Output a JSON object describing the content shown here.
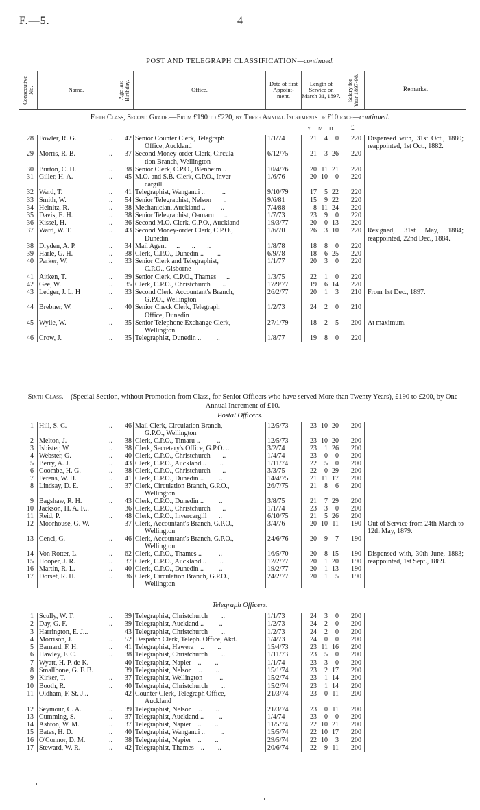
{
  "page": {
    "ref": "F.—5.",
    "number": "4"
  },
  "title": {
    "main": "POST AND TELEGRAPH CLASSIFICATION",
    "cont": "—continued."
  },
  "columns": {
    "no": "Consecutive No.",
    "name": "Name.",
    "age": "Age last Birthday.",
    "office": "Office.",
    "date": "Date of first Appoint- ment.",
    "service": "Length of Service on March 31, 1897.",
    "salary": "Salary for Year 1897-98.",
    "remarks": "Remarks."
  },
  "fifth": {
    "heading": "Fifth Class, Second Grade.—From £190 to £220, by Three Annual Increments of £10 each",
    "cont": "—continued.",
    "units": {
      "y": "Y.",
      "m": "M.",
      "d": "D.",
      "pound": "£"
    },
    "rows": [
      [
        "28",
        "Fowler, R. G.",
        "42",
        [
          "Senior Counter Clerk, Telegraph",
          "Office, Auckland"
        ],
        "1/1/74",
        "21",
        "4",
        "0",
        "220",
        "Dispensed with, 31st Oct., 1880; reappointed, 1st Oct., 1882."
      ],
      [
        "29",
        "Morris, R. B.",
        "37",
        [
          "Second Money-order Clerk, Circula-",
          "tion Branch, Wellington"
        ],
        "6/12/75",
        "21",
        "3",
        "26",
        "220",
        ""
      ],
      [
        "30",
        "Burton, C. H.",
        "38",
        [
          "Senior Clerk, C.P.O., Blenheim .."
        ],
        "10/4/76",
        "20",
        "11",
        "21",
        "220",
        ""
      ],
      [
        "31",
        "Giller, H. A.",
        "45",
        [
          "M.O. and S.B. Clerk, C.P.O., Inver-",
          "cargill"
        ],
        "1/6/76",
        "20",
        "10",
        "0",
        "220",
        ""
      ],
      [
        "32",
        "Ward, T.",
        "41",
        [
          "Telegraphist, Wanganui ..          .."
        ],
        "9/10/79",
        "17",
        "5",
        "22",
        "220",
        ""
      ],
      [
        "33",
        "Smith, W.",
        "54",
        [
          "Senior Telegraphist, Nelson       .."
        ],
        "9/6/81",
        "15",
        "9",
        "22",
        "220",
        ""
      ],
      [
        "34",
        "Heinitz, R.",
        "38",
        [
          "Mechanician, Auckland ..         .."
        ],
        "7/4/88",
        "8",
        "11",
        "24",
        "220",
        ""
      ],
      [
        "35",
        "Davis, E. H.",
        "38",
        [
          "Senior Telegraphist, Oamaru      .."
        ],
        "1/7/73",
        "23",
        "9",
        "0",
        "220",
        ""
      ],
      [
        "36",
        "Kissel, H.",
        "36",
        [
          "Second M.O. Clerk, C.P.O., Auckland"
        ],
        "19/3/77",
        "20",
        "0",
        "13",
        "220",
        ""
      ],
      [
        "37",
        "Ward, W. T.",
        "43",
        [
          "Second Money-order Clerk, C.P.O.,",
          "Dunedin"
        ],
        "1/6/70",
        "26",
        "3",
        "10",
        "220",
        "Resigned, 31st May, 1884; reappointed, 22nd Dec., 1884."
      ],
      [
        "38",
        "Dryden, A. P.",
        "34",
        [
          "Mail Agent      ..       ..       .."
        ],
        "1/8/78",
        "18",
        "8",
        "0",
        "220",
        ""
      ],
      [
        "39",
        "Harle, G. H.",
        "38",
        [
          "Clerk, C.P.O., Dunedin ..        .."
        ],
        "6/9/78",
        "18",
        "6",
        "25",
        "220",
        ""
      ],
      [
        "40",
        "Parker, W.",
        "33",
        [
          "Senior Clerk and Telegraphist,",
          "C.P.O., Gisborne"
        ],
        "1/1/77",
        "20",
        "3",
        "0",
        "220",
        ""
      ],
      [
        "41",
        "Aitken, T.",
        "39",
        [
          "Senior Clerk, C.P.O., Thames      .."
        ],
        "1/3/75",
        "22",
        "1",
        "0",
        "220",
        ""
      ],
      [
        "42",
        "Gee, W.",
        "35",
        [
          "Clerk, C.P.O., Christchurch       .."
        ],
        "17/9/77",
        "19",
        "6",
        "14",
        "220",
        ""
      ],
      [
        "43",
        "Ledger, J. L. H",
        "33",
        [
          "Second Clerk, Accountant's Branch,",
          "G.P.O., Wellington"
        ],
        "26/2/77",
        "20",
        "1",
        "3",
        "210",
        "From 1st Dec., 1897."
      ],
      [
        "44",
        "Brebner, W.",
        "40",
        [
          "Senior Check Clerk, Telegraph",
          "Office, Dunedin"
        ],
        "1/2/73",
        "24",
        "2",
        "0",
        "210",
        ""
      ],
      [
        "45",
        "Wylie, W.",
        "35",
        [
          "Senior Telephone Exchange Clerk,",
          "Wellington"
        ],
        "27/1/79",
        "18",
        "2",
        "5",
        "200",
        "At maximum."
      ],
      [
        "46",
        "Crow, J.",
        "35",
        [
          "Telegraphist, Dunedin ..         .."
        ],
        "1/8/77",
        "19",
        "8",
        "0",
        "220",
        ""
      ]
    ]
  },
  "sixth": {
    "heading_a": "Sixth Class.",
    "heading_b": "—(Special Section, without Promotion from Class, for Senior Officers who have served More than Twenty Years), £190 to £200, by One Annual Increment of £10.",
    "postal_title": "Postal Officers.",
    "postal_rows": [
      [
        "1",
        "Hill, S. C.",
        "46",
        [
          "Mail Clerk, Circulation Branch,",
          "G.P.O., Wellington"
        ],
        "12/5/73",
        "23",
        "10",
        "20",
        "200",
        ""
      ],
      [
        "2",
        "Melton, J.",
        "38",
        [
          "Clerk, C.P.O., Timaru ..          .."
        ],
        "12/5/73",
        "23",
        "10",
        "20",
        "200",
        ""
      ],
      [
        "3",
        "Isbister, W.",
        "38",
        [
          "Clerk, Secretary's Office, G.P.O. .."
        ],
        "3/2/74",
        "23",
        "1",
        "26",
        "200",
        ""
      ],
      [
        "4",
        "Webster, G.",
        "40",
        [
          "Clerk, C.P.O., Christchurch       .."
        ],
        "1/4/74",
        "23",
        "0",
        "0",
        "200",
        ""
      ],
      [
        "5",
        "Berry, A. J.",
        "43",
        [
          "Clerk, C.P.O., Auckland ..        .."
        ],
        "1/11/74",
        "22",
        "5",
        "0",
        "200",
        ""
      ],
      [
        "6",
        "Coombe, H. G.",
        "38",
        [
          "Clerk, C.P.O., Christchurch       .."
        ],
        "3/3/75",
        "22",
        "0",
        "29",
        "200",
        ""
      ],
      [
        "7",
        "Ferens, W. H.",
        "41",
        [
          "Clerk, C.P.O., Dunedin ..         .."
        ],
        "14/4/75",
        "21",
        "11",
        "17",
        "200",
        ""
      ],
      [
        "8",
        "Lindsay, D. E.",
        "37",
        [
          "Clerk, Circulation Branch, G.P.O.,",
          "Wellington"
        ],
        "26/7/75",
        "21",
        "8",
        "6",
        "200",
        ""
      ],
      [
        "9",
        "Bagshaw, R. H.",
        "43",
        [
          "Clerk, C.P.O., Dunedin ..         .."
        ],
        "3/8/75",
        "21",
        "7",
        "29",
        "200",
        ""
      ],
      [
        "10",
        "Jackson, H. A. F...",
        "36",
        [
          "Clerk, C.P.O., Christchurch       .."
        ],
        "1/1/74",
        "23",
        "3",
        "0",
        "200",
        ""
      ],
      [
        "11",
        "Reid, P.",
        "48",
        [
          "Clerk, C.P.O., Invercargill       .."
        ],
        "6/10/75",
        "21",
        "5",
        "26",
        "200",
        ""
      ],
      [
        "12",
        "Moorhouse, G. W.",
        "37",
        [
          "Clerk, Accountant's Branch, G.P.O.,",
          "Wellington"
        ],
        "3/4/76",
        "20",
        "10",
        "11",
        "190",
        "Out of Service from 24th March to 12th May, 1879."
      ],
      [
        "13",
        "Cenci, G.",
        "46",
        [
          "Clerk, Accountant's Branch, G.P.O.,",
          "Wellington"
        ],
        "24/6/76",
        "20",
        "9",
        "7",
        "190",
        ""
      ],
      [
        "14",
        "Von Rotter, L.",
        "62",
        [
          "Clerk, C.P.O., Thames ..          .."
        ],
        "16/5/70",
        "20",
        "8",
        "15",
        "190",
        "Dispensed with, 30th June, 1883; reappointed, 1st Sept., 1889."
      ],
      [
        "15",
        "Hooper, J. R.",
        "37",
        [
          "Clerk, C.P.O., Auckland ..        .."
        ],
        "12/2/77",
        "20",
        "1",
        "20",
        "190",
        ""
      ],
      [
        "16",
        "Martin, R. L.",
        "40",
        [
          "Clerk, C.P.O., Dunedin ..         .."
        ],
        "19/2/77",
        "20",
        "1",
        "13",
        "190",
        ""
      ],
      [
        "17",
        "Dorset, R. H.",
        "36",
        [
          "Clerk, Circulation Branch, G.P.O.,",
          "Wellington"
        ],
        "24/2/77",
        "20",
        "1",
        "5",
        "190",
        ""
      ]
    ],
    "telegraph_title": "Telegraph Officers.",
    "telegraph_rows": [
      [
        "1",
        "Scully, W. T.",
        "39",
        [
          "Telegraphist, Christchurch        .."
        ],
        "1/1/73",
        "24",
        "3",
        "0",
        "200",
        ""
      ],
      [
        "2",
        "Day, G. F.",
        "39",
        [
          "Telegraphist, Auckland ..         .."
        ],
        "1/2/73",
        "24",
        "2",
        "0",
        "200",
        ""
      ],
      [
        "3",
        "Harrington, E. J...",
        "43",
        [
          "Telegraphist, Christchurch        .."
        ],
        "1/2/73",
        "24",
        "2",
        "0",
        "200",
        ""
      ],
      [
        "4",
        "Morrison, J.",
        "52",
        [
          "Despatch Clerk, Teleph. Office, Akd."
        ],
        "1/4/73",
        "24",
        "0",
        "0",
        "200",
        ""
      ],
      [
        "5",
        "Barnard, F. H.",
        "41",
        [
          "Telegraphist, Hawera    ..        .."
        ],
        "15/4/73",
        "23",
        "11",
        "16",
        "200",
        ""
      ],
      [
        "6",
        "Hawley, F. C.",
        "38",
        [
          "Telegraphist, Christchurch        .."
        ],
        "1/11/73",
        "23",
        "5",
        "0",
        "200",
        ""
      ],
      [
        "7",
        "Wyatt, H. P. de K.",
        "40",
        [
          "Telegraphist, Napier    ..        .."
        ],
        "1/1/74",
        "23",
        "3",
        "0",
        "200",
        ""
      ],
      [
        "8",
        "Smallbone, G. F. B.",
        "39",
        [
          "Telegraphist, Nelson    ..        .."
        ],
        "15/1/74",
        "23",
        "2",
        "17",
        "200",
        ""
      ],
      [
        "9",
        "Kirker, T.",
        "37",
        [
          "Telegraphist, Wellington          .."
        ],
        "15/2/74",
        "23",
        "1",
        "14",
        "200",
        ""
      ],
      [
        "10",
        "Booth, R.",
        "40",
        [
          "Telegraphist, Christchurch        .."
        ],
        "15/2/74",
        "23",
        "1",
        "14",
        "200",
        ""
      ],
      [
        "11",
        "Oldham, F. St. J...",
        "42",
        [
          "Counter Clerk, Telegraph Office,",
          "Auckland"
        ],
        "21/3/74",
        "23",
        "0",
        "11",
        "200",
        ""
      ],
      [
        "12",
        "Seymour, C. A.",
        "39",
        [
          "Telegraphist, Nelson    ..        .."
        ],
        "21/3/74",
        "23",
        "0",
        "11",
        "200",
        ""
      ],
      [
        "13",
        "Cumming, S.",
        "37",
        [
          "Telegraphist, Auckland ..         .."
        ],
        "1/4/74",
        "23",
        "0",
        "0",
        "200",
        ""
      ],
      [
        "14",
        "Ashton, W. M.",
        "37",
        [
          "Telegraphist, Napier    ..        .."
        ],
        "11/5/74",
        "22",
        "10",
        "21",
        "200",
        ""
      ],
      [
        "15",
        "Bates, H. D.",
        "40",
        [
          "Telegraphist, Wanganui ..         .."
        ],
        "15/5/74",
        "22",
        "10",
        "17",
        "200",
        ""
      ],
      [
        "16",
        "O'Connor, D. M.",
        "38",
        [
          "Telegraphist, Napier    ..        .."
        ],
        "29/5/74",
        "22",
        "10",
        "3",
        "200",
        ""
      ],
      [
        "17",
        "Steward, W. R.",
        "42",
        [
          "Telegraphist, Thames    ..        .."
        ],
        "20/6/74",
        "22",
        "9",
        "11",
        "200",
        ""
      ]
    ]
  }
}
